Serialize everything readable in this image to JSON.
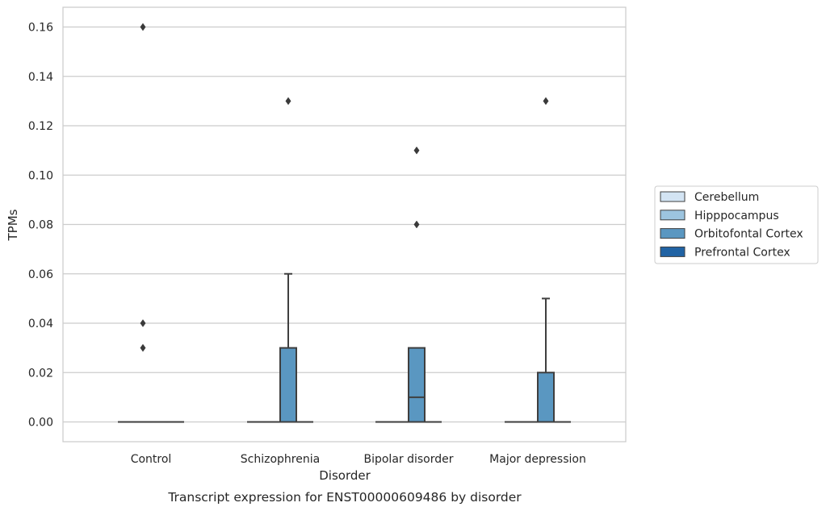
{
  "chart_data": {
    "type": "box",
    "title": "",
    "caption": "Transcript expression for ENST00000609486 by disorder",
    "xlabel": "Disorder",
    "ylabel": "TPMs",
    "ylim": [
      -0.008,
      0.168
    ],
    "yticks": [
      "0.00",
      "0.02",
      "0.04",
      "0.06",
      "0.08",
      "0.10",
      "0.12",
      "0.14",
      "0.16"
    ],
    "ytick_values": [
      0.0,
      0.02,
      0.04,
      0.06,
      0.08,
      0.1,
      0.12,
      0.14,
      0.16
    ],
    "categories": [
      "Control",
      "Schizophrenia",
      "Bipolar disorder",
      "Major depression"
    ],
    "grid": "horizontal",
    "legend_position": "right",
    "series": [
      {
        "name": "Cerebellum",
        "color": "#d3e4f3",
        "boxes": [
          {
            "min": 0,
            "q1": 0,
            "median": 0,
            "q3": 0,
            "max": 0,
            "outliers": []
          },
          {
            "min": 0,
            "q1": 0,
            "median": 0,
            "q3": 0,
            "max": 0,
            "outliers": []
          },
          {
            "min": 0,
            "q1": 0,
            "median": 0,
            "q3": 0,
            "max": 0,
            "outliers": []
          },
          {
            "min": 0,
            "q1": 0,
            "median": 0,
            "q3": 0,
            "max": 0,
            "outliers": []
          }
        ]
      },
      {
        "name": "Hipppocampus",
        "color": "#9cc4df",
        "boxes": [
          {
            "min": 0,
            "q1": 0,
            "median": 0,
            "q3": 0,
            "max": 0,
            "outliers": [
              0.16,
              0.04,
              0.03
            ]
          },
          {
            "min": 0,
            "q1": 0,
            "median": 0,
            "q3": 0,
            "max": 0,
            "outliers": []
          },
          {
            "min": 0,
            "q1": 0,
            "median": 0,
            "q3": 0,
            "max": 0,
            "outliers": []
          },
          {
            "min": 0,
            "q1": 0,
            "median": 0,
            "q3": 0,
            "max": 0,
            "outliers": []
          }
        ]
      },
      {
        "name": "Orbitofontal Cortex",
        "color": "#5a97c1",
        "boxes": [
          {
            "min": 0,
            "q1": 0,
            "median": 0,
            "q3": 0,
            "max": 0,
            "outliers": []
          },
          {
            "min": 0,
            "q1": 0,
            "median": 0,
            "q3": 0.03,
            "max": 0.06,
            "outliers": [
              0.13
            ]
          },
          {
            "min": 0,
            "q1": 0,
            "median": 0.01,
            "q3": 0.03,
            "max": 0.03,
            "outliers": [
              0.11,
              0.08
            ]
          },
          {
            "min": 0,
            "q1": 0,
            "median": 0,
            "q3": 0.02,
            "max": 0.05,
            "outliers": [
              0.13
            ]
          }
        ]
      },
      {
        "name": "Prefrontal Cortex",
        "color": "#2163a4",
        "boxes": [
          {
            "min": 0,
            "q1": 0,
            "median": 0,
            "q3": 0,
            "max": 0,
            "outliers": []
          },
          {
            "min": 0,
            "q1": 0,
            "median": 0,
            "q3": 0,
            "max": 0,
            "outliers": []
          },
          {
            "min": 0,
            "q1": 0,
            "median": 0,
            "q3": 0,
            "max": 0,
            "outliers": []
          },
          {
            "min": 0,
            "q1": 0,
            "median": 0,
            "q3": 0,
            "max": 0,
            "outliers": []
          }
        ]
      }
    ]
  }
}
